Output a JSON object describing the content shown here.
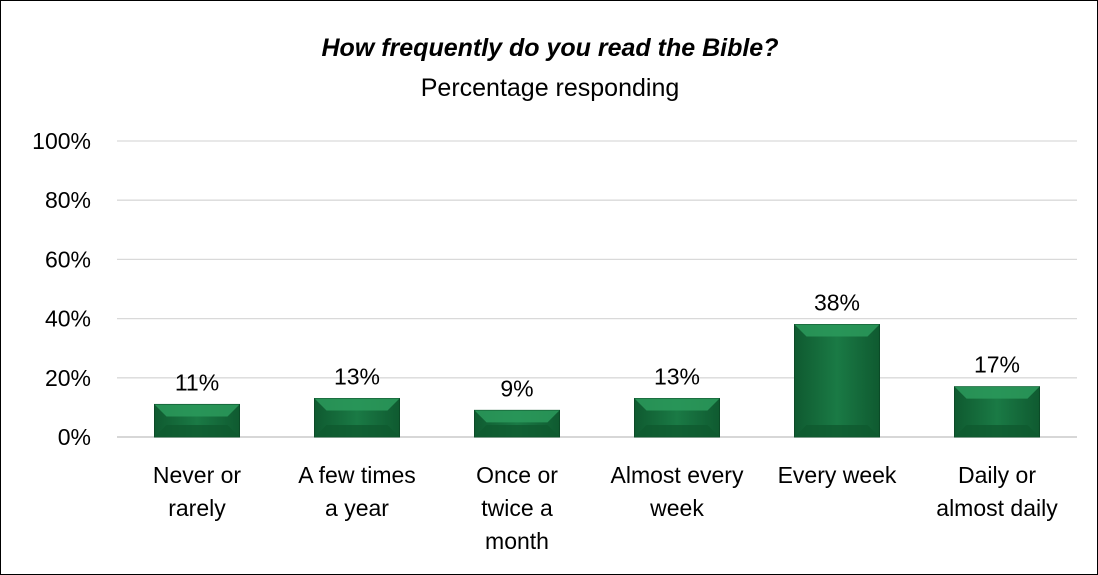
{
  "chart_data": {
    "type": "bar",
    "title": "How frequently do you read the Bible?",
    "subtitle": "Percentage responding",
    "xlabel": "",
    "ylabel": "",
    "ylim": [
      0,
      100
    ],
    "yticks": [
      "0%",
      "20%",
      "40%",
      "60%",
      "80%",
      "100%"
    ],
    "categories": [
      [
        "Never or",
        "rarely"
      ],
      [
        "A few times",
        "a year"
      ],
      [
        "Once or",
        "twice a",
        "month"
      ],
      [
        "Almost every",
        "week"
      ],
      [
        "Every week"
      ],
      [
        "Daily or",
        "almost daily"
      ]
    ],
    "values": [
      11,
      13,
      9,
      13,
      38,
      17
    ],
    "value_labels": [
      "11%",
      "13%",
      "9%",
      "13%",
      "38%",
      "17%"
    ],
    "grid": true,
    "legend": "none",
    "colors": {
      "bar": "#1a7a45",
      "bar_light": "#2c9a5c",
      "bar_dark": "#0f5a30",
      "grid": "#d9d9d9",
      "axis": "#bfbfbf"
    }
  }
}
